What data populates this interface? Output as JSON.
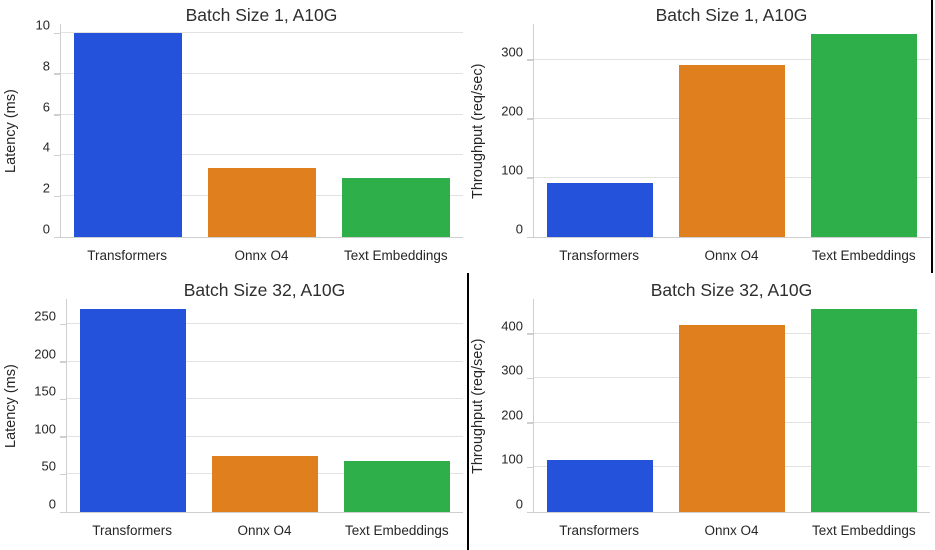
{
  "palette": {
    "bar_blue": "#2452DB",
    "bar_orange": "#DF7F1E",
    "bar_green": "#2EAF4A",
    "grid": "#e2e2e2",
    "spine": "#cfcfcf",
    "text": "#262626",
    "title": "#2e2e2e",
    "divider": "#000000",
    "background": "#ffffff"
  },
  "chart_data": [
    {
      "id": "latency-batch-1",
      "type": "bar",
      "title": "Batch Size 1, A10G",
      "xlabel": "",
      "ylabel": "Latency (ms)",
      "categories": [
        "Transformers",
        "Onnx O4",
        "Text Embeddings"
      ],
      "values": [
        10.0,
        3.4,
        2.9
      ],
      "yticks": [
        0,
        2,
        4,
        6,
        8,
        10
      ],
      "ylim": [
        0,
        10.45
      ],
      "grid": true,
      "legend": false,
      "bar_colors": [
        "#2452DB",
        "#DF7F1E",
        "#2EAF4A"
      ]
    },
    {
      "id": "throughput-batch-1",
      "type": "bar",
      "title": "Batch Size 1, A10G",
      "xlabel": "",
      "ylabel": "Throughput (req/sec)",
      "categories": [
        "Transformers",
        "Onnx O4",
        "Text Embeddings"
      ],
      "values": [
        92,
        290,
        343
      ],
      "yticks": [
        0,
        100,
        200,
        300
      ],
      "ylim": [
        0,
        360
      ],
      "grid": true,
      "legend": false,
      "bar_colors": [
        "#2452DB",
        "#DF7F1E",
        "#2EAF4A"
      ]
    },
    {
      "id": "latency-batch-32",
      "type": "bar",
      "title": "Batch Size 32, A10G",
      "xlabel": "",
      "ylabel": "Latency (ms)",
      "categories": [
        "Transformers",
        "Onnx O4",
        "Text Embeddings"
      ],
      "values": [
        270,
        75,
        68
      ],
      "yticks": [
        0,
        50,
        100,
        150,
        200,
        250
      ],
      "ylim": [
        0,
        283.5
      ],
      "grid": true,
      "legend": false,
      "bar_colors": [
        "#2452DB",
        "#DF7F1E",
        "#2EAF4A"
      ]
    },
    {
      "id": "throughput-batch-32",
      "type": "bar",
      "title": "Batch Size 32, A10G",
      "xlabel": "",
      "ylabel": "Throughput (req/sec)",
      "categories": [
        "Transformers",
        "Onnx O4",
        "Text Embeddings"
      ],
      "values": [
        116,
        420,
        455
      ],
      "yticks": [
        0,
        100,
        200,
        300,
        400
      ],
      "ylim": [
        0,
        478
      ],
      "grid": true,
      "legend": false,
      "bar_colors": [
        "#2452DB",
        "#DF7F1E",
        "#2EAF4A"
      ]
    }
  ]
}
